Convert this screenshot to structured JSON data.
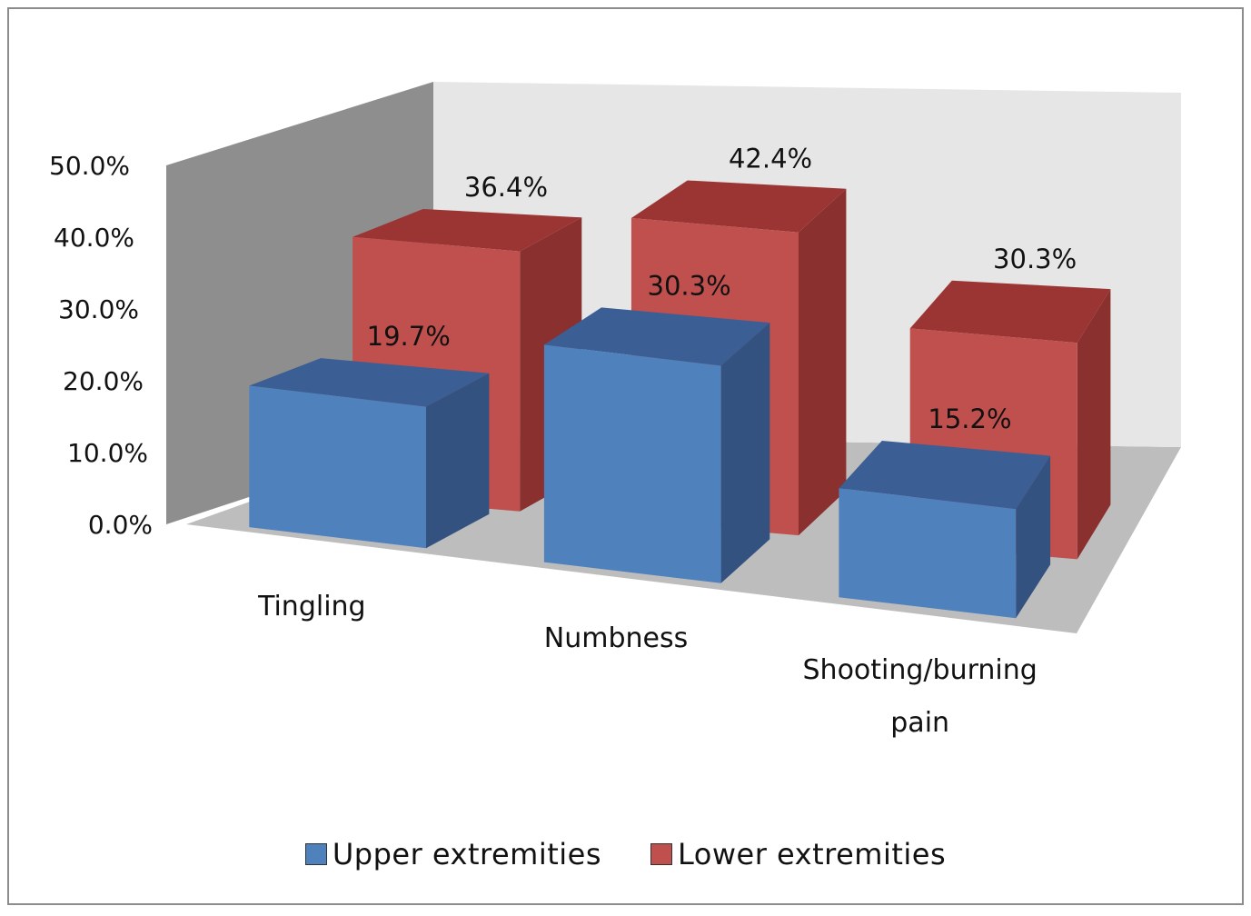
{
  "chart_data": {
    "type": "bar",
    "title": "",
    "xlabel": "",
    "ylabel": "",
    "ylim": [
      0,
      50
    ],
    "y_ticks": [
      "0.0%",
      "10.0%",
      "20.0%",
      "30.0%",
      "40.0%",
      "50.0%"
    ],
    "categories": [
      "Tingling",
      "Numbness",
      "Shooting/burning pain"
    ],
    "category_lines": [
      [
        "Tingling"
      ],
      [
        "Numbness"
      ],
      [
        "Shooting/burning",
        "pain"
      ]
    ],
    "series": [
      {
        "name": "Upper extremities",
        "values": [
          19.7,
          30.3,
          15.2
        ],
        "labels": [
          "19.7%",
          "30.3%",
          "15.2%"
        ],
        "colors": {
          "front": "#4f81bd",
          "top": "#3b5e94",
          "side": "#34527f"
        }
      },
      {
        "name": "Lower extremities",
        "values": [
          36.4,
          42.4,
          30.3
        ],
        "labels": [
          "36.4%",
          "42.4%",
          "30.3%"
        ],
        "colors": {
          "front": "#c0504d",
          "top": "#9b3533",
          "side": "#8a302e"
        }
      }
    ],
    "legend_position": "bottom",
    "grid": false,
    "style": "3d-column"
  }
}
